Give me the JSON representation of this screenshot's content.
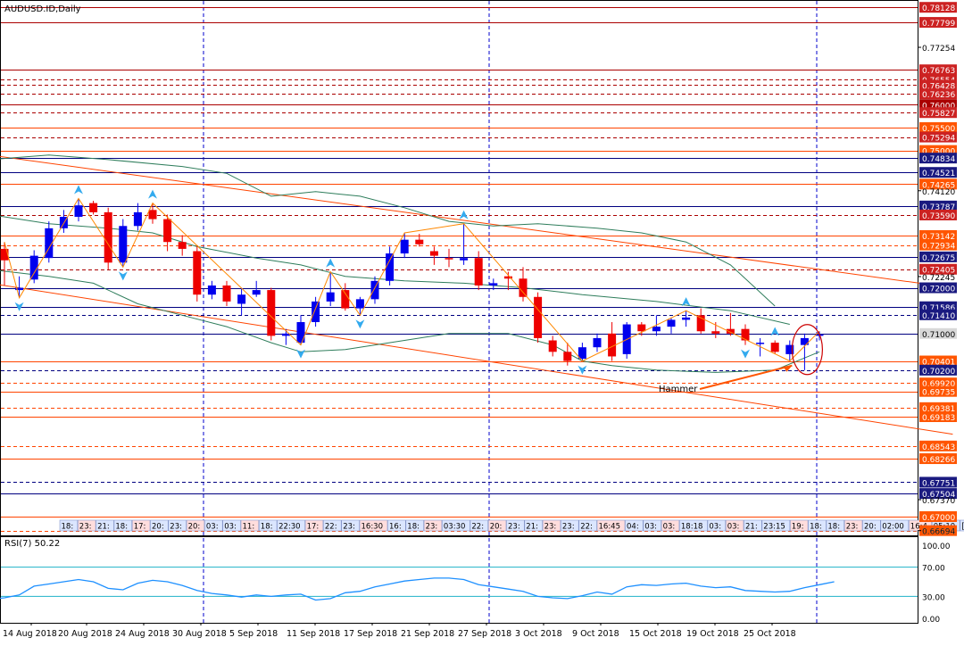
{
  "title": "AUDUSD.ID,Daily",
  "rsi_label": "RSI(7) 50.22",
  "annotation": "Hammer",
  "colors": {
    "bull": "#0000ee",
    "bear": "#ee0000",
    "red_line": "#aa0000",
    "blue_line": "#000080",
    "orange_line": "#ff4400",
    "bands": "#2e7d5b",
    "zigzag": "#ff8800",
    "fractal": "#33aaee",
    "rsi": "#1e90ff",
    "rsi_levels": "#20b2c8",
    "grid": "#0000cc"
  },
  "chart_data": {
    "type": "candlestick",
    "symbol": "AUDUSD.ID",
    "timeframe": "Daily",
    "ylim": [
      0.6659,
      0.7821
    ],
    "price_ticks": [
      "0.77254",
      "0.74120",
      "0.72245",
      "0.67370",
      "0.66694"
    ],
    "x_labels": [
      "14 Aug 2018",
      "20 Aug 2018",
      "24 Aug 2018",
      "30 Aug 2018",
      "5 Sep 2018",
      "11 Sep 2018",
      "17 Sep 2018",
      "21 Sep 2018",
      "27 Sep 2018",
      "3 Oct 2018",
      "9 Oct 2018",
      "15 Oct 2018",
      "19 Oct 2018",
      "25 Oct 2018"
    ],
    "candles": [
      {
        "o": 0.7285,
        "h": 0.73,
        "l": 0.7205,
        "c": 0.726
      },
      {
        "o": 0.7195,
        "h": 0.7225,
        "l": 0.7178,
        "c": 0.72
      },
      {
        "o": 0.7218,
        "h": 0.7282,
        "l": 0.721,
        "c": 0.727
      },
      {
        "o": 0.7265,
        "h": 0.7345,
        "l": 0.7255,
        "c": 0.733
      },
      {
        "o": 0.733,
        "h": 0.737,
        "l": 0.732,
        "c": 0.7355
      },
      {
        "o": 0.7355,
        "h": 0.7395,
        "l": 0.7345,
        "c": 0.738
      },
      {
        "o": 0.7385,
        "h": 0.739,
        "l": 0.736,
        "c": 0.7365
      },
      {
        "o": 0.7365,
        "h": 0.7375,
        "l": 0.724,
        "c": 0.7255
      },
      {
        "o": 0.7255,
        "h": 0.735,
        "l": 0.7245,
        "c": 0.7335
      },
      {
        "o": 0.7335,
        "h": 0.7385,
        "l": 0.7325,
        "c": 0.7365
      },
      {
        "o": 0.737,
        "h": 0.7385,
        "l": 0.734,
        "c": 0.735
      },
      {
        "o": 0.735,
        "h": 0.736,
        "l": 0.728,
        "c": 0.73
      },
      {
        "o": 0.73,
        "h": 0.7315,
        "l": 0.727,
        "c": 0.7285
      },
      {
        "o": 0.728,
        "h": 0.729,
        "l": 0.717,
        "c": 0.7185
      },
      {
        "o": 0.7185,
        "h": 0.7215,
        "l": 0.7175,
        "c": 0.7205
      },
      {
        "o": 0.7205,
        "h": 0.7215,
        "l": 0.716,
        "c": 0.717
      },
      {
        "o": 0.7165,
        "h": 0.72,
        "l": 0.714,
        "c": 0.7185
      },
      {
        "o": 0.7185,
        "h": 0.7215,
        "l": 0.718,
        "c": 0.7195
      },
      {
        "o": 0.7195,
        "h": 0.72,
        "l": 0.7085,
        "c": 0.7095
      },
      {
        "o": 0.7095,
        "h": 0.711,
        "l": 0.7075,
        "c": 0.71
      },
      {
        "o": 0.708,
        "h": 0.714,
        "l": 0.7075,
        "c": 0.7125
      },
      {
        "o": 0.7125,
        "h": 0.718,
        "l": 0.7115,
        "c": 0.717
      },
      {
        "o": 0.717,
        "h": 0.7235,
        "l": 0.716,
        "c": 0.719
      },
      {
        "o": 0.7195,
        "h": 0.721,
        "l": 0.715,
        "c": 0.7155
      },
      {
        "o": 0.7155,
        "h": 0.718,
        "l": 0.714,
        "c": 0.7175
      },
      {
        "o": 0.7175,
        "h": 0.7225,
        "l": 0.7165,
        "c": 0.7215
      },
      {
        "o": 0.7215,
        "h": 0.729,
        "l": 0.7205,
        "c": 0.7275
      },
      {
        "o": 0.7275,
        "h": 0.732,
        "l": 0.7265,
        "c": 0.7305
      },
      {
        "o": 0.7305,
        "h": 0.7318,
        "l": 0.729,
        "c": 0.7295
      },
      {
        "o": 0.728,
        "h": 0.729,
        "l": 0.725,
        "c": 0.727
      },
      {
        "o": 0.7265,
        "h": 0.7285,
        "l": 0.7245,
        "c": 0.7262
      },
      {
        "o": 0.726,
        "h": 0.734,
        "l": 0.725,
        "c": 0.7265
      },
      {
        "o": 0.7265,
        "h": 0.728,
        "l": 0.7195,
        "c": 0.7205
      },
      {
        "o": 0.7205,
        "h": 0.722,
        "l": 0.7195,
        "c": 0.721
      },
      {
        "o": 0.7225,
        "h": 0.7235,
        "l": 0.7195,
        "c": 0.722
      },
      {
        "o": 0.722,
        "h": 0.7245,
        "l": 0.717,
        "c": 0.718
      },
      {
        "o": 0.718,
        "h": 0.719,
        "l": 0.708,
        "c": 0.709
      },
      {
        "o": 0.7085,
        "h": 0.7095,
        "l": 0.705,
        "c": 0.706
      },
      {
        "o": 0.706,
        "h": 0.708,
        "l": 0.703,
        "c": 0.704
      },
      {
        "o": 0.7045,
        "h": 0.708,
        "l": 0.704,
        "c": 0.707
      },
      {
        "o": 0.707,
        "h": 0.71,
        "l": 0.706,
        "c": 0.709
      },
      {
        "o": 0.71,
        "h": 0.7125,
        "l": 0.704,
        "c": 0.705
      },
      {
        "o": 0.7055,
        "h": 0.7125,
        "l": 0.7045,
        "c": 0.712
      },
      {
        "o": 0.712,
        "h": 0.7125,
        "l": 0.7095,
        "c": 0.7105
      },
      {
        "o": 0.7105,
        "h": 0.714,
        "l": 0.7095,
        "c": 0.7115
      },
      {
        "o": 0.7115,
        "h": 0.7135,
        "l": 0.71,
        "c": 0.713
      },
      {
        "o": 0.713,
        "h": 0.715,
        "l": 0.7115,
        "c": 0.7135
      },
      {
        "o": 0.714,
        "h": 0.7155,
        "l": 0.71,
        "c": 0.7105
      },
      {
        "o": 0.7105,
        "h": 0.7125,
        "l": 0.709,
        "c": 0.71
      },
      {
        "o": 0.711,
        "h": 0.7145,
        "l": 0.7095,
        "c": 0.71
      },
      {
        "o": 0.711,
        "h": 0.712,
        "l": 0.7075,
        "c": 0.7085
      },
      {
        "o": 0.708,
        "h": 0.709,
        "l": 0.705,
        "c": 0.708
      },
      {
        "o": 0.708,
        "h": 0.7085,
        "l": 0.7055,
        "c": 0.706
      },
      {
        "o": 0.7055,
        "h": 0.7085,
        "l": 0.704,
        "c": 0.7075
      },
      {
        "o": 0.7075,
        "h": 0.71,
        "l": 0.702,
        "c": 0.709
      },
      {
        "o": 0.7095,
        "h": 0.7105,
        "l": 0.7085,
        "c": 0.7098
      }
    ],
    "fractals_up": [
      5,
      10,
      22,
      31,
      46,
      52
    ],
    "fractals_down": [
      1,
      8,
      20,
      24,
      39,
      50
    ],
    "zigzag_points": [
      [
        0,
        0.73
      ],
      [
        1,
        0.7178
      ],
      [
        5,
        0.7395
      ],
      [
        8,
        0.7245
      ],
      [
        10,
        0.7385
      ],
      [
        20,
        0.7075
      ],
      [
        22,
        0.7235
      ],
      [
        24,
        0.714
      ],
      [
        27,
        0.732
      ],
      [
        31,
        0.734
      ],
      [
        39,
        0.704
      ],
      [
        46,
        0.715
      ],
      [
        53,
        0.704
      ],
      [
        55,
        0.7105
      ]
    ],
    "horizontal_levels": [
      {
        "price": 0.78128,
        "label": "0.78128",
        "style": "solid",
        "color": "red_line",
        "label_bg": "#cc2222"
      },
      {
        "price": 0.77799,
        "label": "0.77799",
        "style": "solid",
        "color": "red_line",
        "label_bg": "#cc2222"
      },
      {
        "price": 0.76763,
        "label": "0.76763",
        "style": "solid",
        "color": "red_line",
        "label_bg": "#cc2222"
      },
      {
        "price": 0.76554,
        "label": "0.76554",
        "style": "dash",
        "color": "red_line",
        "label_bg": "#cc2222"
      },
      {
        "price": 0.76428,
        "label": "0.76428",
        "style": "dash",
        "color": "red_line",
        "label_bg": "#cc2222"
      },
      {
        "price": 0.76236,
        "label": "0.76236",
        "style": "dash",
        "color": "red_line",
        "label_bg": "#cc2222"
      },
      {
        "price": 0.76,
        "label": "0.76000",
        "style": "solid",
        "color": "red_line",
        "label_bg": "#aa0000"
      },
      {
        "price": 0.75827,
        "label": "0.75827",
        "style": "dash",
        "color": "red_line",
        "label_bg": "#cc2222"
      },
      {
        "price": 0.755,
        "label": "0.75500",
        "style": "solid",
        "color": "orange_line",
        "label_bg": "#ff5500"
      },
      {
        "price": 0.75294,
        "label": "0.75294",
        "style": "dash",
        "color": "red_line",
        "label_bg": "#cc2222"
      },
      {
        "price": 0.75,
        "label": "0.75000",
        "style": "solid",
        "color": "orange_line",
        "label_bg": "#ff5500"
      },
      {
        "price": 0.74834,
        "label": "0.74834",
        "style": "solid",
        "color": "blue_line",
        "label_bg": "#1a1a80"
      },
      {
        "price": 0.74521,
        "label": "0.74521",
        "style": "solid",
        "color": "blue_line",
        "label_bg": "#1a1a80"
      },
      {
        "price": 0.74265,
        "label": "0.74265",
        "style": "solid",
        "color": "orange_line",
        "label_bg": "#ff5500"
      },
      {
        "price": 0.73787,
        "label": "0.73787",
        "style": "solid",
        "color": "blue_line",
        "label_bg": "#1a1a80"
      },
      {
        "price": 0.7359,
        "label": "0.73590",
        "style": "dash",
        "color": "red_line",
        "label_bg": "#cc2222"
      },
      {
        "price": 0.73142,
        "label": "0.73142",
        "style": "solid",
        "color": "orange_line",
        "label_bg": "#ff5500"
      },
      {
        "price": 0.72934,
        "label": "0.72934",
        "style": "dash",
        "color": "orange_line",
        "label_bg": "#ff5500"
      },
      {
        "price": 0.72675,
        "label": "0.72675",
        "style": "solid",
        "color": "blue_line",
        "label_bg": "#1a1a80"
      },
      {
        "price": 0.72405,
        "label": "0.72405",
        "style": "dash",
        "color": "red_line",
        "label_bg": "#cc2222"
      },
      {
        "price": 0.72,
        "label": "0.72000",
        "style": "solid",
        "color": "blue_line",
        "label_bg": "#1a1a80"
      },
      {
        "price": 0.71586,
        "label": "0.71586",
        "style": "solid",
        "color": "blue_line",
        "label_bg": "#1a1a80"
      },
      {
        "price": 0.7141,
        "label": "0.71410",
        "style": "dash",
        "color": "blue_line",
        "label_bg": "#1a1a80"
      },
      {
        "price": 0.71,
        "label": "0.71000",
        "style": "solid",
        "color": "blue_line",
        "label_bg": "#d8d8d8"
      },
      {
        "price": 0.70401,
        "label": "0.70401",
        "style": "solid",
        "color": "orange_line",
        "label_bg": "#ff5500"
      },
      {
        "price": 0.702,
        "label": "0.70200",
        "style": "dash",
        "color": "blue_line",
        "label_bg": "#1a1a80"
      },
      {
        "price": 0.6992,
        "label": "0.69920",
        "style": "dash",
        "color": "orange_line",
        "label_bg": "#ff5500"
      },
      {
        "price": 0.69735,
        "label": "0.69735",
        "style": "solid",
        "color": "orange_line",
        "label_bg": "#ff5500"
      },
      {
        "price": 0.69381,
        "label": "0.69381",
        "style": "dash",
        "color": "orange_line",
        "label_bg": "#ff5500"
      },
      {
        "price": 0.69183,
        "label": "0.69183",
        "style": "solid",
        "color": "orange_line",
        "label_bg": "#ff5500"
      },
      {
        "price": 0.68543,
        "label": "0.68543",
        "style": "dash",
        "color": "orange_line",
        "label_bg": "#ff5500"
      },
      {
        "price": 0.68266,
        "label": "0.68266",
        "style": "solid",
        "color": "orange_line",
        "label_bg": "#ff5500"
      },
      {
        "price": 0.67751,
        "label": "0.67751",
        "style": "dash",
        "color": "blue_line",
        "label_bg": "#1a1a80"
      },
      {
        "price": 0.67504,
        "label": "0.67504",
        "style": "solid",
        "color": "blue_line",
        "label_bg": "#1a1a80"
      },
      {
        "price": 0.67,
        "label": "0.67000",
        "style": "solid",
        "color": "orange_line",
        "label_bg": "#ff5500"
      },
      {
        "price": 0.66694,
        "label": "0.66694",
        "style": "dash",
        "color": "orange_line",
        "label_bg": "#ff5500"
      }
    ],
    "trend_lines": [
      {
        "from": [
          -1,
          0.749
        ],
        "to": [
          64,
          0.72
        ],
        "color": "orange_line"
      },
      {
        "from": [
          -1,
          0.721
        ],
        "to": [
          64,
          0.688
        ],
        "color": "orange_line"
      }
    ],
    "bollinger_upper": [
      [
        -1,
        0.748
      ],
      [
        3,
        0.749
      ],
      [
        7,
        0.748
      ],
      [
        12,
        0.7465
      ],
      [
        15,
        0.745
      ],
      [
        18,
        0.74
      ],
      [
        21,
        0.741
      ],
      [
        24,
        0.74
      ],
      [
        27,
        0.7375
      ],
      [
        30,
        0.7345
      ],
      [
        33,
        0.7335
      ],
      [
        36,
        0.734
      ],
      [
        40,
        0.733
      ],
      [
        43,
        0.732
      ],
      [
        46,
        0.73
      ],
      [
        49,
        0.725
      ],
      [
        52,
        0.716
      ]
    ],
    "bollinger_middle": [
      [
        -1,
        0.736
      ],
      [
        3,
        0.734
      ],
      [
        7,
        0.733
      ],
      [
        10,
        0.732
      ],
      [
        13,
        0.729
      ],
      [
        17,
        0.7265
      ],
      [
        20,
        0.725
      ],
      [
        23,
        0.7225
      ],
      [
        27,
        0.7215
      ],
      [
        31,
        0.721
      ],
      [
        35,
        0.72
      ],
      [
        39,
        0.7185
      ],
      [
        44,
        0.717
      ],
      [
        49,
        0.715
      ],
      [
        53,
        0.712
      ]
    ],
    "bollinger_lower": [
      [
        -1,
        0.724
      ],
      [
        3,
        0.7225
      ],
      [
        6,
        0.721
      ],
      [
        9,
        0.7165
      ],
      [
        12,
        0.714
      ],
      [
        15,
        0.7115
      ],
      [
        18,
        0.708
      ],
      [
        20,
        0.706
      ],
      [
        23,
        0.7065
      ],
      [
        27,
        0.7085
      ],
      [
        30,
        0.71
      ],
      [
        34,
        0.71
      ],
      [
        37,
        0.7075
      ],
      [
        39,
        0.704
      ],
      [
        41,
        0.703
      ],
      [
        44,
        0.702
      ],
      [
        48,
        0.7015
      ],
      [
        52,
        0.702
      ],
      [
        55,
        0.706
      ]
    ],
    "time_labels": [
      "18:",
      "23:",
      "21:",
      "18:",
      "17:",
      "20:",
      "23:",
      "20:",
      "03:",
      "03:",
      "11:",
      "18:",
      "22:30",
      "17:",
      "22:",
      "23:",
      "16:30",
      "16:",
      "18:",
      "23:",
      "03:30",
      "22:",
      "20:",
      "23:",
      "21:",
      "23:",
      "23:",
      "22:",
      "16:45",
      "04:",
      "03:",
      "03:",
      "18:18",
      "03:",
      "03:",
      "21:",
      "23:15",
      "19:",
      "18:",
      "18:",
      "23:",
      "20:",
      "02:00",
      "16:4",
      "05:10",
      "[",
      "1",
      "0",
      "20:00"
    ],
    "rsi": {
      "name": "RSI(7)",
      "value": "50.22",
      "ylim": [
        0,
        100
      ],
      "ticks": [
        "100.00",
        "70.00",
        "30.00",
        "0.00"
      ],
      "levels": [
        70,
        30
      ],
      "values": [
        26,
        28,
        32,
        44,
        47,
        50,
        53,
        50,
        41,
        39,
        48,
        52,
        50,
        45,
        38,
        34,
        32,
        29,
        32,
        30,
        32,
        33,
        25,
        27,
        35,
        37,
        43,
        47,
        51,
        53,
        55,
        55,
        53,
        46,
        43,
        40,
        37,
        30,
        28,
        27,
        31,
        36,
        33,
        43,
        46,
        45,
        47,
        48,
        44,
        42,
        43,
        38,
        37,
        36,
        37,
        42,
        46,
        50
      ]
    }
  }
}
